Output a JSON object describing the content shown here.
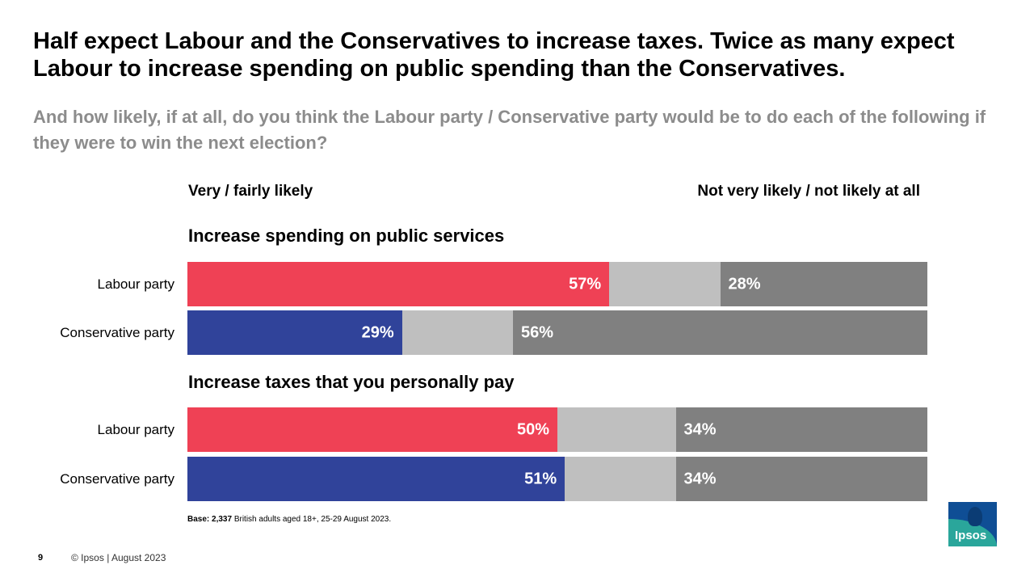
{
  "slide": {
    "title": "Half expect Labour and the Conservatives to increase taxes. Twice as many expect Labour to increase spending on public spending than the Conservatives.",
    "subtitle": "And how likely, if at all, do you think the Labour party / Conservative party would be to do each of the following if they were to win the next election?",
    "base_bold": "Base: 2,337",
    "base_rest": " British adults aged 18+, 25-29 August 2023.",
    "page_number": "9",
    "footer": "© Ipsos | August 2023",
    "logo_text": "Ipsos"
  },
  "colors": {
    "labour": "#ef4155",
    "conservative": "#30439a",
    "middle": "#bfbfbf",
    "unlikely": "#808080"
  },
  "chart_data": {
    "type": "bar",
    "orientation": "horizontal-stacked",
    "legend": {
      "likely": "Very / fairly likely",
      "unlikely": "Not very likely / not likely at all"
    },
    "groups": [
      {
        "title": "Increase spending on public services",
        "rows": [
          {
            "label": "Labour party",
            "party": "labour",
            "likely": 57,
            "unlikely": 28,
            "likely_label": "57%",
            "unlikely_label": "28%"
          },
          {
            "label": "Conservative party",
            "party": "conservative",
            "likely": 29,
            "unlikely": 56,
            "likely_label": "29%",
            "unlikely_label": "56%"
          }
        ]
      },
      {
        "title": "Increase taxes that you personally pay",
        "rows": [
          {
            "label": "Labour party",
            "party": "labour",
            "likely": 50,
            "unlikely": 34,
            "likely_label": "50%",
            "unlikely_label": "34%"
          },
          {
            "label": "Conservative party",
            "party": "conservative",
            "likely": 51,
            "unlikely": 34,
            "likely_label": "51%",
            "unlikely_label": "34%"
          }
        ]
      }
    ]
  }
}
